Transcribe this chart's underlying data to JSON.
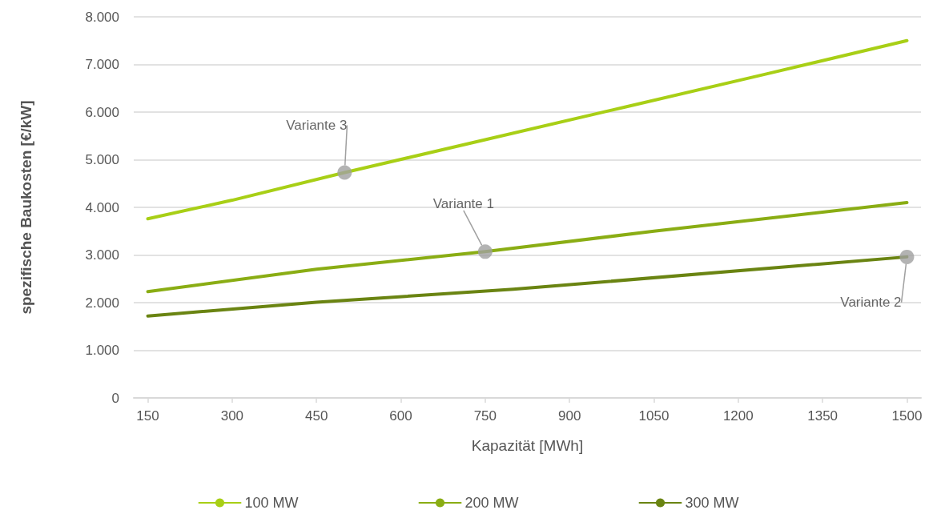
{
  "chart_data": {
    "type": "line",
    "xlabel": "Kapazität [MWh]",
    "ylabel": "spezifische Baukosten [€/kW]",
    "xlim": [
      125,
      1525
    ],
    "xticks": [
      150,
      300,
      450,
      600,
      750,
      900,
      1050,
      1200,
      1350,
      1500
    ],
    "ylim": [
      0,
      8000
    ],
    "yticks": [
      0,
      {
        "value": 1000,
        "label": "1.000"
      },
      {
        "value": 2000,
        "label": "2.000"
      },
      {
        "value": 3000,
        "label": "3.000"
      },
      {
        "value": 4000,
        "label": "4.000"
      },
      {
        "value": 5000,
        "label": "5.000"
      },
      {
        "value": 6000,
        "label": "6.000"
      },
      {
        "value": 7000,
        "label": "7.000"
      },
      {
        "value": 8000,
        "label": "8.000"
      }
    ],
    "grid": "y",
    "legend": "bottom",
    "marker": "none",
    "line_style": "solid",
    "series": [
      {
        "name": "100 MW",
        "color": "#a8cf16",
        "x": [
          150,
          300,
          500,
          750,
          1000,
          1250,
          1500
        ],
        "values": [
          3760,
          4150,
          4730,
          5420,
          6110,
          6800,
          7500
        ]
      },
      {
        "name": "200 MW",
        "color": "#8aad14",
        "x": [
          150,
          450,
          750,
          1050,
          1500
        ],
        "values": [
          2230,
          2700,
          3070,
          3500,
          4100
        ]
      },
      {
        "name": "300 MW",
        "color": "#6a8412",
        "x": [
          150,
          450,
          800,
          1500
        ],
        "values": [
          1720,
          2010,
          2280,
          2960
        ]
      }
    ],
    "annotations": [
      {
        "text": "Variante 3",
        "x": 500,
        "y": 4730
      },
      {
        "text": "Variante 1",
        "x": 750,
        "y": 3070
      },
      {
        "text": "Variante 2",
        "x": 1500,
        "y": 2960
      }
    ]
  }
}
